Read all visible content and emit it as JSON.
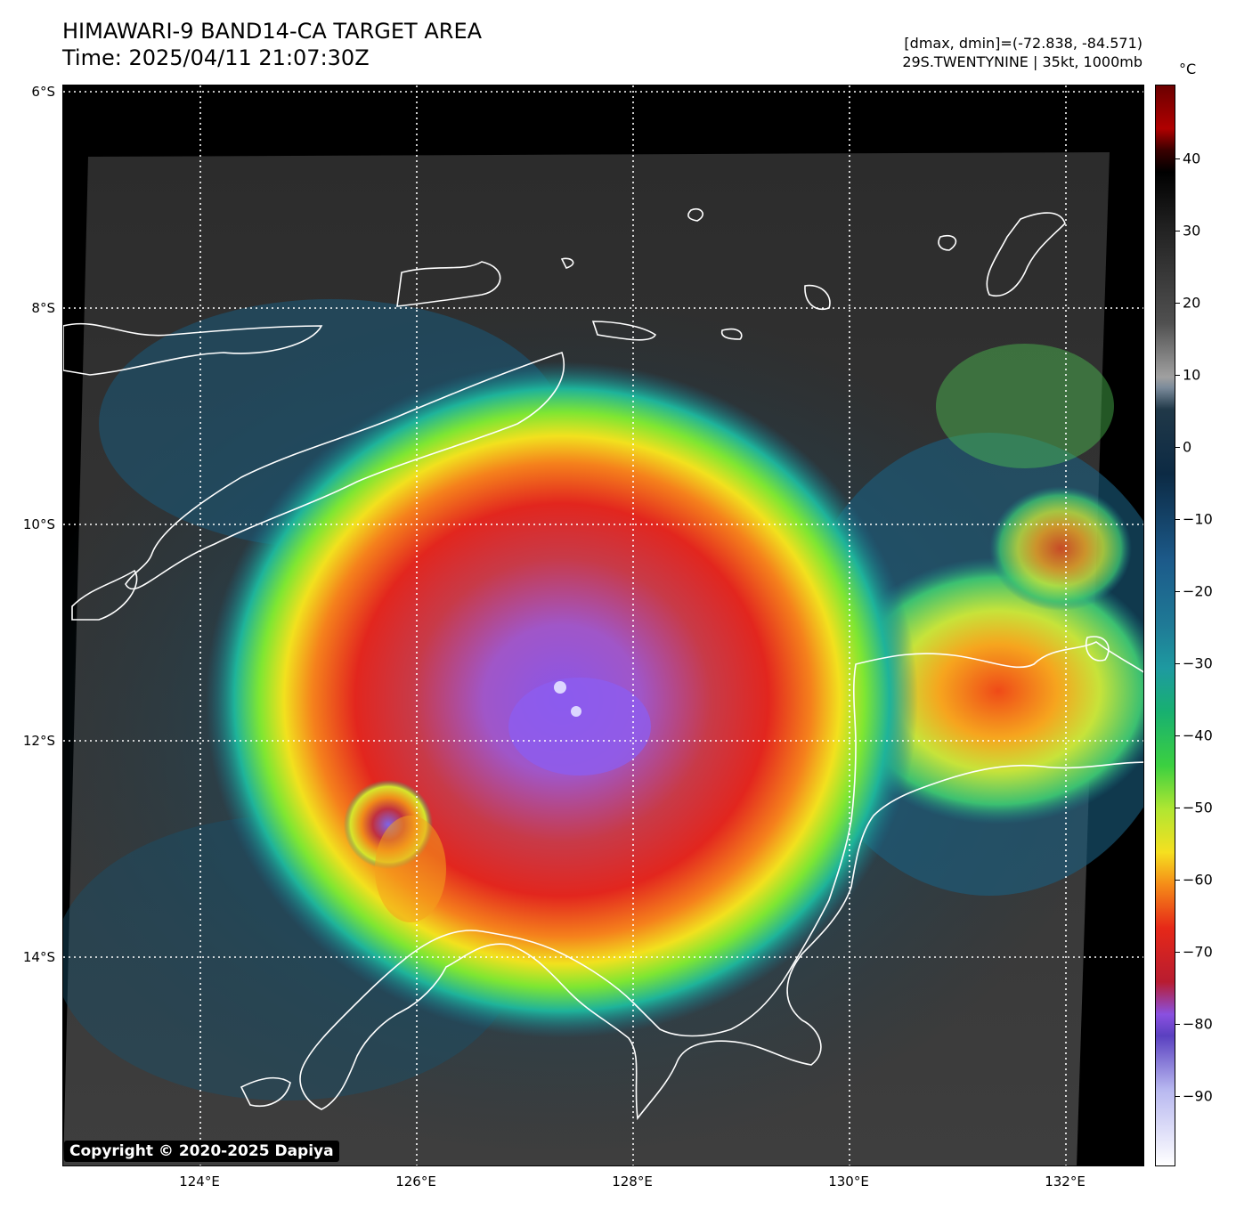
{
  "header": {
    "title_line1": "HIMAWARI-9 BAND14-CA TARGET AREA",
    "title_line2": "Time: 2025/04/11 21:07:30Z",
    "stats_line1": "[dmax, dmin]=(-72.838, -84.571)",
    "stats_line2": "29S.TWENTYNINE | 35kt, 1000mb"
  },
  "map": {
    "lat_labels": [
      "6°S",
      "8°S",
      "10°S",
      "12°S",
      "14°S"
    ],
    "lon_labels": [
      "124°E",
      "126°E",
      "128°E",
      "130°E",
      "132°E"
    ],
    "copyright": "Copyright © 2020-2025 Dapiya",
    "colors": {
      "coastline": "#ffffff",
      "gridline": "#ffffff",
      "background": "#000000"
    }
  },
  "colorbar": {
    "unit": "°C",
    "ticks": [
      "40",
      "30",
      "20",
      "10",
      "0",
      "−10",
      "−20",
      "−30",
      "−40",
      "−50",
      "−60",
      "−70",
      "−80",
      "−90"
    ]
  }
}
